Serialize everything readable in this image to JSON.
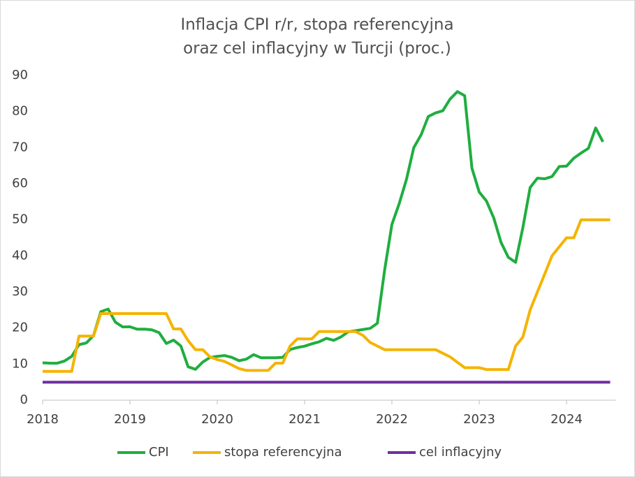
{
  "chart_data": {
    "type": "line",
    "title": [
      "Inflacja CPI r/r, stopa referencyjna",
      "oraz cel inflacyjny w Turcji (proc.)"
    ],
    "categories": [
      "2018",
      null,
      null,
      null,
      null,
      null,
      null,
      null,
      null,
      null,
      null,
      null,
      "2019",
      null,
      null,
      null,
      null,
      null,
      null,
      null,
      null,
      null,
      null,
      null,
      "2020",
      null,
      null,
      null,
      null,
      null,
      null,
      null,
      null,
      null,
      null,
      null,
      "2021",
      null,
      null,
      null,
      null,
      null,
      null,
      null,
      null,
      null,
      null,
      null,
      "2022",
      null,
      null,
      null,
      null,
      null,
      null,
      null,
      null,
      null,
      null,
      null,
      "2023",
      null,
      null,
      null,
      null,
      null,
      null,
      null,
      null,
      null,
      null,
      null,
      "2024",
      null,
      null,
      null,
      null,
      null,
      null
    ],
    "series": [
      {
        "name": "CPI",
        "color": "#1fae3f",
        "values": [
          10.35,
          10.26,
          10.23,
          10.85,
          12.15,
          15.39,
          15.85,
          17.9,
          24.52,
          25.24,
          21.62,
          20.3,
          20.35,
          19.67,
          19.71,
          19.5,
          18.71,
          15.72,
          16.65,
          15.01,
          9.26,
          8.55,
          10.56,
          11.84,
          12.15,
          12.37,
          11.86,
          10.94,
          11.39,
          12.62,
          11.76,
          11.77,
          11.75,
          11.89,
          14.03,
          14.6,
          14.97,
          15.61,
          16.19,
          17.14,
          16.59,
          17.53,
          18.95,
          19.25,
          19.58,
          19.89,
          21.31,
          36.08,
          48.69,
          54.44,
          61.14,
          69.97,
          73.5,
          78.62,
          79.6,
          80.21,
          83.45,
          85.51,
          84.39,
          64.27,
          57.68,
          55.18,
          50.51,
          43.68,
          39.59,
          38.21,
          47.83,
          58.94,
          61.53,
          61.36,
          61.98,
          64.77,
          64.86,
          67.07,
          68.5,
          69.8,
          75.45,
          71.6,
          null
        ]
      },
      {
        "name": "stopa referencyjna",
        "color": "#f5b301",
        "values": [
          8,
          8,
          8,
          8,
          8,
          17.75,
          17.75,
          17.75,
          24,
          24,
          24,
          24,
          24,
          24,
          24,
          24,
          24,
          24,
          19.75,
          19.75,
          16.5,
          14,
          14,
          12,
          11.25,
          10.75,
          9.75,
          8.75,
          8.25,
          8.25,
          8.25,
          8.25,
          10.25,
          10.25,
          15,
          17,
          17,
          17,
          19,
          19,
          19,
          19,
          19,
          19,
          18,
          16,
          15,
          14,
          14,
          14,
          14,
          14,
          14,
          14,
          14,
          13,
          12,
          10.5,
          9,
          9,
          9,
          8.5,
          8.5,
          8.5,
          8.5,
          15,
          17.5,
          25,
          30,
          35,
          40,
          42.5,
          45,
          45,
          50,
          50,
          50,
          50,
          50
        ]
      },
      {
        "name": "cel inflacyjny",
        "color": "#7030a0",
        "values": [
          5,
          5,
          5,
          5,
          5,
          5,
          5,
          5,
          5,
          5,
          5,
          5,
          5,
          5,
          5,
          5,
          5,
          5,
          5,
          5,
          5,
          5,
          5,
          5,
          5,
          5,
          5,
          5,
          5,
          5,
          5,
          5,
          5,
          5,
          5,
          5,
          5,
          5,
          5,
          5,
          5,
          5,
          5,
          5,
          5,
          5,
          5,
          5,
          5,
          5,
          5,
          5,
          5,
          5,
          5,
          5,
          5,
          5,
          5,
          5,
          5,
          5,
          5,
          5,
          5,
          5,
          5,
          5,
          5,
          5,
          5,
          5,
          5,
          5,
          5,
          5,
          5,
          5,
          5
        ]
      }
    ],
    "ylim": [
      0,
      90
    ],
    "yticks": [
      0,
      10,
      20,
      30,
      40,
      50,
      60,
      70,
      80,
      90
    ],
    "grid": false
  }
}
